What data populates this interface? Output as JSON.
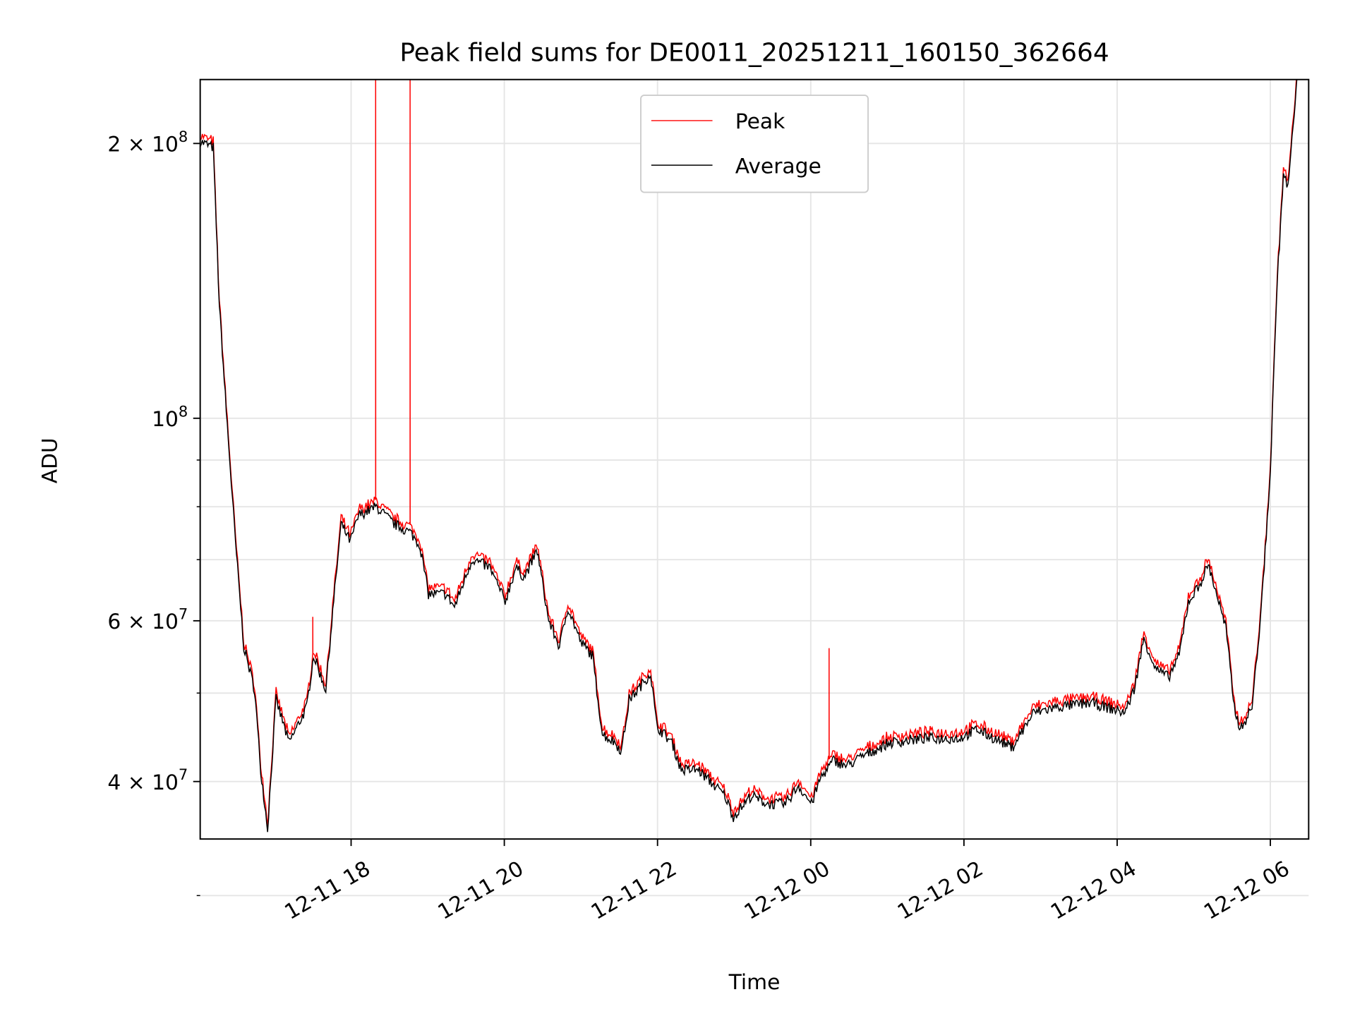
{
  "chart_data": {
    "type": "line",
    "title": "Peak field sums for DE0011_20251211_160150_362664",
    "xlabel": "Time",
    "ylabel": "ADU",
    "x_units": "hours since 2025-12-11 00:00",
    "xlim": [
      16.03,
      30.5
    ],
    "ylim": [
      34600000,
      235000000
    ],
    "yscale": "log",
    "grid": true,
    "legend_position": "top-center",
    "x_ticks": [
      {
        "value": 18,
        "label": "12-11 18"
      },
      {
        "value": 20,
        "label": "12-11 20"
      },
      {
        "value": 22,
        "label": "12-11 22"
      },
      {
        "value": 24,
        "label": "12-12 00"
      },
      {
        "value": 26,
        "label": "12-12 02"
      },
      {
        "value": 28,
        "label": "12-12 04"
      },
      {
        "value": 30,
        "label": "12-12 06"
      }
    ],
    "y_ticks": [
      {
        "value": 200000000,
        "label": "2 × 10⁸",
        "mant": "2 × 10",
        "exp": "8"
      },
      {
        "value": 100000000,
        "label": "10⁸",
        "mant": "10",
        "exp": "8"
      },
      {
        "value": 60000000,
        "label": "6 × 10⁷",
        "mant": "6 × 10",
        "exp": "7"
      },
      {
        "value": 40000000,
        "label": "4 × 10⁷",
        "mant": "4 × 10",
        "exp": "7"
      }
    ],
    "y_minor": [
      30000000,
      50000000,
      70000000,
      80000000,
      90000000
    ],
    "series": [
      {
        "name": "Peak",
        "color": "#ff0000",
        "ratio_to_average": 1.015,
        "spikes": [
          [
            17.5,
            60600000
          ],
          [
            18.32,
            300000000
          ],
          [
            18.77,
            300000000
          ],
          [
            24.24,
            56000000
          ]
        ]
      },
      {
        "name": "Average",
        "color": "#000000"
      }
    ],
    "average_points": [
      [
        16.03,
        201000000.0
      ],
      [
        16.2,
        198000000.0
      ],
      [
        16.28,
        133000000.0
      ],
      [
        16.37,
        102000000.0
      ],
      [
        16.49,
        73300000.0
      ],
      [
        16.6,
        56200000.0
      ],
      [
        16.74,
        50400000.0
      ],
      [
        16.82,
        41200000.0
      ],
      [
        16.91,
        35500000.0
      ],
      [
        17.02,
        49200000.0
      ],
      [
        17.19,
        44100000.0
      ],
      [
        17.42,
        48200000.0
      ],
      [
        17.51,
        55000000.0
      ],
      [
        17.67,
        50400000.0
      ],
      [
        17.76,
        61400000.0
      ],
      [
        17.87,
        76600000.0
      ],
      [
        17.99,
        73300000.0
      ],
      [
        18.1,
        78300000.0
      ],
      [
        18.33,
        80000000.0
      ],
      [
        18.56,
        76600000.0
      ],
      [
        18.78,
        74900000.0
      ],
      [
        18.9,
        72500000.0
      ],
      [
        19.01,
        64200000.0
      ],
      [
        19.24,
        64200000.0
      ],
      [
        19.35,
        62100000.0
      ],
      [
        19.58,
        70100000.0
      ],
      [
        19.81,
        68600000.0
      ],
      [
        20.01,
        63000000.0
      ],
      [
        20.15,
        68600000.0
      ],
      [
        20.26,
        67000000.0
      ],
      [
        20.43,
        71600000.0
      ],
      [
        20.58,
        60000000.0
      ],
      [
        20.72,
        56200000.0
      ],
      [
        20.83,
        62100000.0
      ],
      [
        21.0,
        56800000.0
      ],
      [
        21.15,
        55000000.0
      ],
      [
        21.28,
        45100000.0
      ],
      [
        21.45,
        44100000.0
      ],
      [
        21.53,
        43200000.0
      ],
      [
        21.63,
        49200000.0
      ],
      [
        21.74,
        50400000.0
      ],
      [
        21.91,
        52600000.0
      ],
      [
        21.99,
        46000000.0
      ],
      [
        22.19,
        44100000.0
      ],
      [
        22.31,
        41200000.0
      ],
      [
        22.53,
        41200000.0
      ],
      [
        22.88,
        38600000.0
      ],
      [
        22.99,
        36600000.0
      ],
      [
        23.22,
        38600000.0
      ],
      [
        23.44,
        37800000.0
      ],
      [
        23.67,
        37800000.0
      ],
      [
        23.84,
        39600000.0
      ],
      [
        24.01,
        37800000.0
      ],
      [
        24.13,
        40400000.0
      ],
      [
        24.3,
        42200000.0
      ],
      [
        24.47,
        41600000.0
      ],
      [
        24.69,
        42700000.0
      ],
      [
        25.03,
        44100000.0
      ],
      [
        25.49,
        44600000.0
      ],
      [
        25.94,
        44600000.0
      ],
      [
        26.17,
        45600000.0
      ],
      [
        26.63,
        43600000.0
      ],
      [
        26.91,
        47600000.0
      ],
      [
        27.19,
        48200000.0
      ],
      [
        27.65,
        48800000.0
      ],
      [
        28.1,
        47600000.0
      ],
      [
        28.22,
        50400000.0
      ],
      [
        28.35,
        57400000.0
      ],
      [
        28.5,
        53200000.0
      ],
      [
        28.67,
        52000000.0
      ],
      [
        28.81,
        55000000.0
      ],
      [
        28.93,
        63000000.0
      ],
      [
        29.07,
        65500000.0
      ],
      [
        29.19,
        69200000.0
      ],
      [
        29.3,
        64200000.0
      ],
      [
        29.42,
        58800000.0
      ],
      [
        29.53,
        48200000.0
      ],
      [
        29.61,
        45600000.0
      ],
      [
        29.76,
        48200000.0
      ],
      [
        29.88,
        61400000.0
      ],
      [
        30.0,
        87300000.0
      ],
      [
        30.08,
        136000000.0
      ],
      [
        30.17,
        185000000.0
      ],
      [
        30.23,
        179000000.0
      ],
      [
        30.35,
        235000000.0
      ],
      [
        30.4,
        250000000.0
      ]
    ]
  }
}
